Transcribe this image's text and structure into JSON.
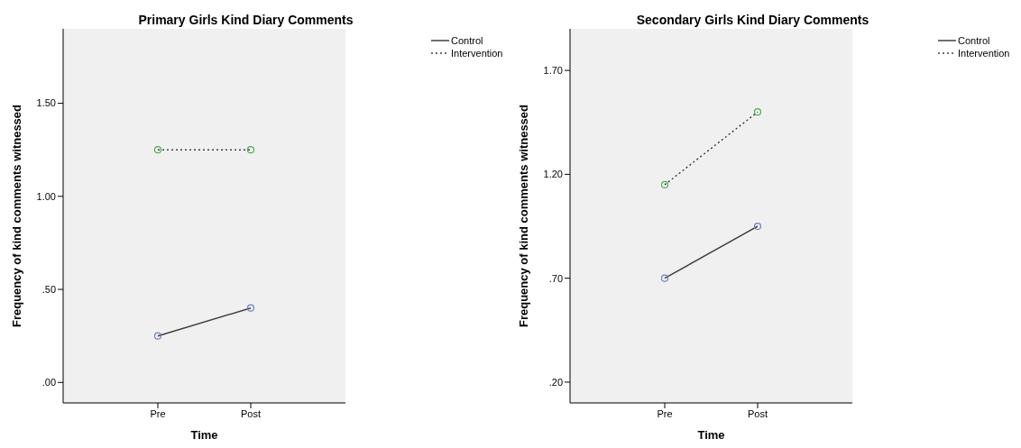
{
  "chart_data": [
    {
      "type": "line",
      "title": "Primary Girls Kind Diary Comments",
      "xlabel": "Time",
      "ylabel": "Frequency of kind comments witnessed",
      "categories": [
        "Pre",
        "Post"
      ],
      "ylim": [
        -0.11,
        1.9
      ],
      "yticks": [
        {
          "value": 0,
          "label": ".00"
        },
        {
          "value": 0.5,
          "label": ".50"
        },
        {
          "value": 1,
          "label": "1.00"
        },
        {
          "value": 1.5,
          "label": "1.50"
        }
      ],
      "legend": "top right",
      "marker": "circle",
      "series": [
        {
          "name": "Control",
          "color": "#404040",
          "colors": [
            "#6f7fc0",
            "#6f7fc0"
          ],
          "line_style": "solid",
          "values": [
            0.25,
            0.4
          ]
        },
        {
          "name": "Intervention",
          "color": "#404040",
          "colors": [
            "#4caf50",
            "#4caf50"
          ],
          "line_style": "dotted",
          "values": [
            1.25,
            1.25
          ]
        }
      ]
    },
    {
      "type": "line",
      "title": "Secondary Girls Kind Diary Comments",
      "xlabel": "Time",
      "ylabel": "Frequency of kind comments witnessed",
      "categories": [
        "Pre",
        "Post"
      ],
      "ylim": [
        0.1,
        1.9
      ],
      "yticks": [
        {
          "value": 0.2,
          "label": ".20"
        },
        {
          "value": 0.7,
          "label": ".70"
        },
        {
          "value": 1.2,
          "label": "1.20"
        },
        {
          "value": 1.7,
          "label": "1.70"
        }
      ],
      "legend": "top right",
      "marker": "circle",
      "series": [
        {
          "name": "Control",
          "color": "#404040",
          "colors": [
            "#6f7fc0",
            "#6f7fc0"
          ],
          "line_style": "solid",
          "values": [
            0.7,
            0.95
          ]
        },
        {
          "name": "Intervention",
          "color": "#404040",
          "colors": [
            "#4caf50",
            "#4caf50"
          ],
          "line_style": "dotted",
          "values": [
            1.15,
            1.5
          ]
        }
      ]
    }
  ]
}
